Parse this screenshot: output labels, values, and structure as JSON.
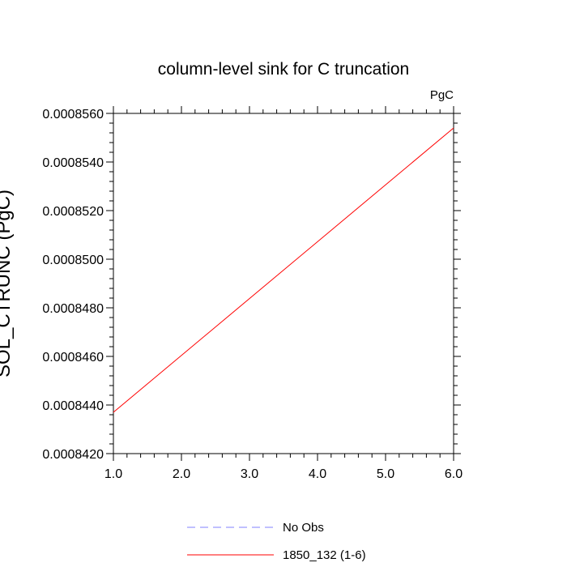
{
  "chart_data": {
    "type": "line",
    "title": "column-level sink for C truncation",
    "units": "PgC",
    "ylabel": "SOL_CTRUNC (PgC)",
    "xlabel": "",
    "xlim": [
      1.0,
      6.0
    ],
    "ylim": [
      0.000842,
      0.000856
    ],
    "x_ticks": [
      "1.0",
      "2.0",
      "3.0",
      "4.0",
      "5.0",
      "6.0"
    ],
    "y_ticks": [
      "0.0008420",
      "0.0008440",
      "0.0008460",
      "0.0008480",
      "0.0008500",
      "0.0008520",
      "0.0008540",
      "0.0008560"
    ],
    "series": [
      {
        "name": "No Obs",
        "color": "#8080ff",
        "dash": "dashed",
        "x": [],
        "values": []
      },
      {
        "name": "1850_132 (1-6)",
        "color": "#ff0000",
        "dash": "solid",
        "x": [
          1.0,
          6.0
        ],
        "values": [
          0.0008437,
          0.0008554
        ]
      }
    ],
    "legend_position": "bottom"
  }
}
